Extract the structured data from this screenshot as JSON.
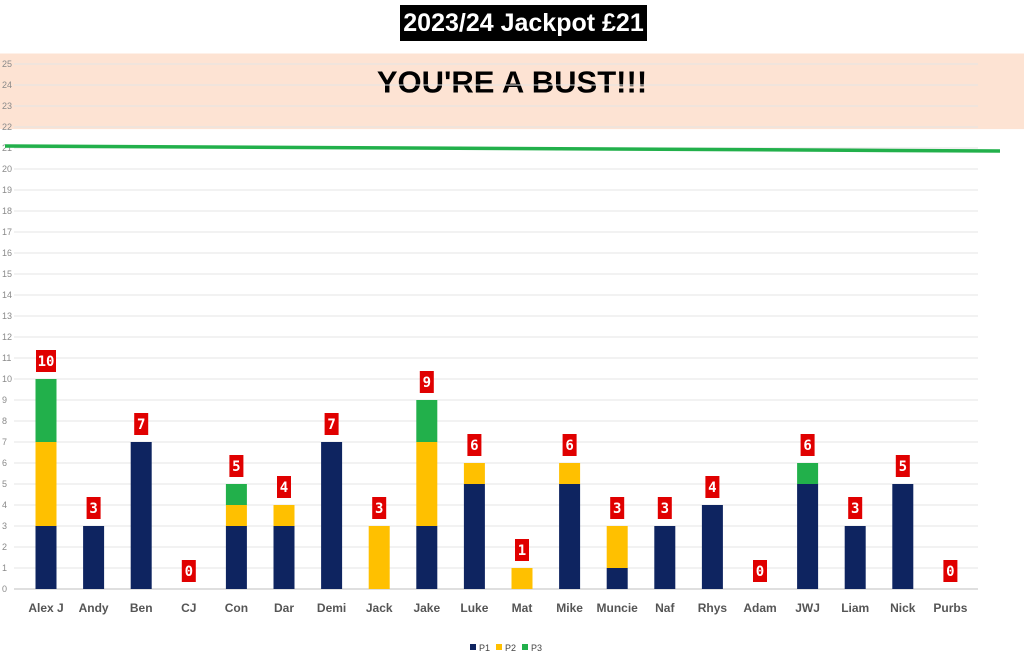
{
  "title": "2023/24 Jackpot £21",
  "chart_data": {
    "type": "bar",
    "stacked": true,
    "title": "2023/24 Jackpot £21",
    "categories": [
      "Alex J",
      "Andy",
      "Ben",
      "CJ",
      "Con",
      "Dar",
      "Demi",
      "Jack",
      "Jake",
      "Luke",
      "Mat",
      "Mike",
      "Muncie",
      "Naf",
      "Rhys",
      "Adam",
      "JWJ",
      "Liam",
      "Nick",
      "Purbs"
    ],
    "series": [
      {
        "name": "P1",
        "color": "#0e2460",
        "values": [
          3,
          3,
          7,
          0,
          3,
          3,
          7,
          0,
          3,
          5,
          0,
          5,
          1,
          3,
          4,
          0,
          5,
          3,
          5,
          0
        ]
      },
      {
        "name": "P2",
        "color": "#ffc000",
        "values": [
          4,
          0,
          0,
          0,
          1,
          1,
          0,
          3,
          4,
          1,
          1,
          1,
          2,
          0,
          0,
          0,
          0,
          0,
          0,
          0
        ]
      },
      {
        "name": "P3",
        "color": "#22b04b",
        "values": [
          3,
          0,
          0,
          0,
          1,
          0,
          0,
          0,
          2,
          0,
          0,
          0,
          0,
          0,
          0,
          0,
          1,
          0,
          0,
          0
        ]
      }
    ],
    "totals": [
      10,
      3,
      7,
      0,
      5,
      4,
      7,
      3,
      9,
      6,
      1,
      6,
      3,
      3,
      4,
      0,
      6,
      3,
      5,
      0
    ],
    "ylim": [
      0,
      25
    ],
    "y_ticks": [
      0,
      1,
      2,
      3,
      4,
      5,
      6,
      7,
      8,
      9,
      10,
      11,
      12,
      13,
      14,
      15,
      16,
      17,
      18,
      19,
      20,
      21,
      22,
      23,
      24,
      25
    ],
    "grid": true,
    "legend": "bottom",
    "jackpot_line": {
      "value": 21,
      "color": "#22b04b"
    },
    "bust_zone": {
      "from": 21.9,
      "to": 25.5,
      "label": "YOU'RE A BUST!!!",
      "color": "#fde3d3"
    },
    "total_label_color": "#e00000"
  }
}
